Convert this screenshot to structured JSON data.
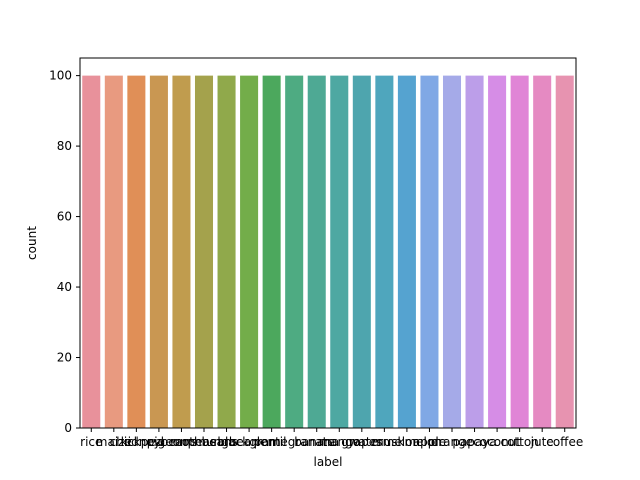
{
  "chart_data": {
    "type": "bar",
    "categories": [
      "rice",
      "maize",
      "chickpea",
      "kidneybeans",
      "pigeonpeas",
      "mothbeans",
      "mungbean",
      "blackgram",
      "lentil",
      "pomegranate",
      "banana",
      "mango",
      "grapes",
      "watermelon",
      "muskmelon",
      "apple",
      "orange",
      "papaya",
      "coconut",
      "cotton",
      "jute",
      "coffee"
    ],
    "values": [
      100,
      100,
      100,
      100,
      100,
      100,
      100,
      100,
      100,
      100,
      100,
      100,
      100,
      100,
      100,
      100,
      100,
      100,
      100,
      100,
      100,
      100
    ],
    "colors": [
      "#e8919b",
      "#e89a80",
      "#e08f57",
      "#c99752",
      "#c09c4e",
      "#a4a24c",
      "#90a94b",
      "#73ad4a",
      "#4ca85d",
      "#4eab82",
      "#4ea994",
      "#4ea8a2",
      "#4ea5ae",
      "#4fa6bd",
      "#55a3d0",
      "#80a8e5",
      "#a5aae8",
      "#bc9ee9",
      "#d68de6",
      "#e085d6",
      "#e58ac2",
      "#e793b0"
    ],
    "title": "",
    "xlabel": "label",
    "ylabel": "count",
    "ylim": [
      0,
      105
    ],
    "yticks": [
      0,
      20,
      40,
      60,
      80,
      100
    ],
    "grid": false,
    "legend": "none"
  }
}
